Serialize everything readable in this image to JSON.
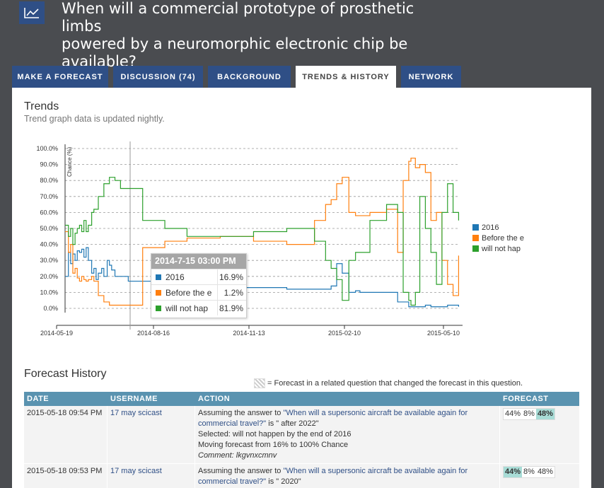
{
  "question": {
    "title_line1": "When will a commercial prototype of prosthetic limbs",
    "title_line2": "powered by a neuromorphic electronic chip be",
    "title_line3": "available?"
  },
  "tabs": [
    {
      "label": "MAKE A FORECAST"
    },
    {
      "label": "DISCUSSION (74)"
    },
    {
      "label": "BACKGROUND"
    },
    {
      "label": "TRENDS & HISTORY"
    },
    {
      "label": "NETWORK"
    }
  ],
  "trends": {
    "title": "Trends",
    "subtitle": "Trend graph data is updated nightly."
  },
  "chart_data": {
    "type": "line",
    "ylabel": "Chance (%)",
    "ylim": [
      0,
      100
    ],
    "y_ticks": [
      "100.0%",
      "90.0%",
      "80.0%",
      "70.0%",
      "60.0%",
      "50.0%",
      "40.0%",
      "30.0%",
      "20.0%",
      "10.0%",
      "0.0%"
    ],
    "x_ticks": [
      "2014-05-19",
      "2014-08-16",
      "2014-11-13",
      "2015-02-10",
      "2015-05-10"
    ],
    "grid": true,
    "legend": "right",
    "series": [
      {
        "name": "2016",
        "color": "#1f77b4",
        "x": [
          0,
          3,
          5,
          7,
          9,
          11,
          13,
          15,
          17,
          19,
          21,
          24,
          26,
          28,
          30,
          33,
          35,
          38,
          40,
          42,
          45,
          50,
          57,
          70,
          90,
          110,
          140,
          170,
          200,
          225,
          240,
          245,
          250,
          256,
          260,
          262,
          266,
          275,
          290,
          300,
          310,
          318,
          325,
          330,
          335,
          340,
          345,
          350,
          355
        ],
        "y": [
          20,
          35,
          28,
          34,
          30,
          36,
          35,
          37,
          32,
          38,
          30,
          22,
          25,
          18,
          22,
          25,
          20,
          30,
          27,
          24,
          20,
          20,
          17,
          17,
          15,
          16,
          13,
          13,
          12,
          12,
          14,
          28,
          22,
          10,
          10,
          11,
          10,
          10,
          10,
          4,
          1,
          1,
          2,
          1,
          1,
          1,
          2,
          2,
          1
        ]
      },
      {
        "name": "Before the e",
        "color": "#ff7f0e",
        "x": [
          0,
          3,
          5,
          7,
          9,
          11,
          13,
          15,
          17,
          19,
          21,
          24,
          26,
          30,
          35,
          40,
          45,
          50,
          57,
          70,
          90,
          110,
          140,
          170,
          200,
          225,
          235,
          240,
          245,
          250,
          256,
          262,
          275,
          290,
          300,
          305,
          310,
          312,
          316,
          320,
          325,
          330,
          335,
          340,
          345,
          350,
          355
        ],
        "y": [
          48,
          35,
          40,
          22,
          25,
          19,
          17,
          20,
          18,
          17,
          18,
          20,
          17,
          8,
          4,
          2,
          2,
          2,
          2,
          38,
          42,
          44,
          45,
          42,
          40,
          55,
          65,
          68,
          78,
          82,
          60,
          58,
          60,
          62,
          35,
          80,
          92,
          94,
          88,
          90,
          85,
          55,
          60,
          30,
          15,
          8,
          33
        ]
      },
      {
        "name": "will not hap",
        "color": "#2ca02c",
        "x": [
          0,
          3,
          5,
          7,
          9,
          11,
          13,
          15,
          17,
          19,
          21,
          24,
          26,
          30,
          35,
          40,
          45,
          50,
          57,
          70,
          90,
          110,
          140,
          170,
          200,
          225,
          235,
          240,
          245,
          250,
          256,
          262,
          275,
          290,
          300,
          305,
          310,
          312,
          316,
          320,
          325,
          330,
          335,
          340,
          345,
          350,
          355
        ],
        "y": [
          52,
          45,
          50,
          40,
          47,
          50,
          52,
          48,
          55,
          48,
          52,
          60,
          62,
          70,
          78,
          82,
          80,
          75,
          75,
          55,
          50,
          45,
          45,
          48,
          50,
          42,
          30,
          25,
          18,
          5,
          30,
          35,
          55,
          65,
          60,
          10,
          5,
          2,
          10,
          70,
          50,
          35,
          15,
          60,
          78,
          60,
          55
        ]
      }
    ],
    "hover": {
      "date": "2014-7-15 03:00 PM",
      "rows": [
        {
          "name": "2016",
          "value": "16.9%",
          "color": "#1f77b4"
        },
        {
          "name": "Before the e",
          "value": "1.2%",
          "color": "#ff7f0e"
        },
        {
          "name": "will not hap",
          "value": "81.9%",
          "color": "#2ca02c"
        }
      ]
    }
  },
  "history": {
    "title": "Forecast History",
    "note": "= Forecast in a related question that changed the forecast in this question.",
    "columns": [
      "DATE",
      "USERNAME",
      "ACTION",
      "FORECAST"
    ],
    "rows": [
      {
        "date": "2015-05-18 09:54 PM",
        "username": "17 may scicast",
        "action_prefix": "Assuming the answer to ",
        "action_link": "\"When will a supersonic aircraft be available again for commercial travel?\"",
        "action_suffix": " is \" after 2022\"",
        "selected": "Selected: will not happen by the end of 2016",
        "moving": "Moving forecast from 16% to 100% Chance",
        "comment": "Comment: lkgvnxcmnv",
        "forecast": [
          "44%",
          "8%",
          "48%"
        ],
        "highlight": 2
      },
      {
        "date": "2015-05-18 09:53 PM",
        "username": "17 may scicast",
        "action_prefix": "Assuming the answer to ",
        "action_link": "\"When will a supersonic aircraft be available again for commercial travel?\"",
        "action_suffix": " is \" 2020\"",
        "forecast": [
          "44%",
          "8%",
          "48%"
        ],
        "highlight": 0
      }
    ]
  }
}
